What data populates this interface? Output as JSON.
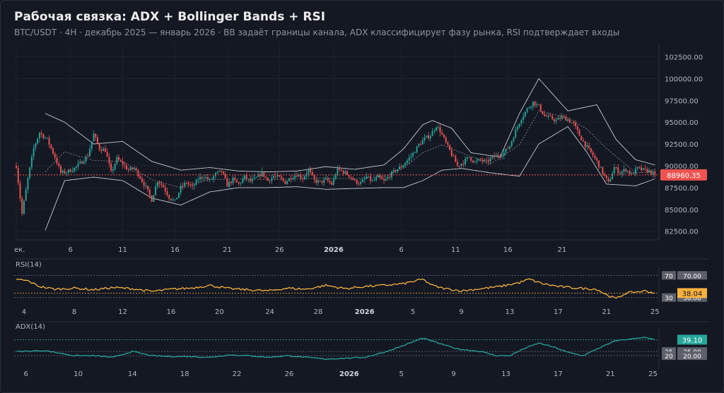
{
  "header": {
    "title": "Рабочая связка: ADX + Bollinger Bands + RSI",
    "subtitle": "BTC/USDT · 4H · декабрь 2025 — январь 2026 · BB задаёт границы канала, ADX классифицирует фазу рынка, RSI подтверждает входы"
  },
  "chart_data": [
    {
      "type": "candlestick",
      "instrument": "BTC/USDT",
      "timeframe": "4H",
      "y_ticks": [
        "102500.00",
        "100000.00",
        "97500.00",
        "95000.00",
        "92500.00",
        "90000.00",
        "87500.00",
        "85000.00",
        "82500.00"
      ],
      "ylim": [
        81500,
        104000
      ],
      "x_ticks": [
        "ек.",
        "6",
        "11",
        "16",
        "21",
        "26",
        "2026",
        "6",
        "11",
        "16",
        "21"
      ],
      "last_price": 88960.35,
      "last_price_label": "88960.35",
      "closes_anchor": [
        [
          0,
          90000
        ],
        [
          3,
          84500
        ],
        [
          6,
          88500
        ],
        [
          9,
          92000
        ],
        [
          12,
          93800
        ],
        [
          16,
          93000
        ],
        [
          20,
          91000
        ],
        [
          23,
          89200
        ],
        [
          26,
          89300
        ],
        [
          30,
          89700
        ],
        [
          34,
          90500
        ],
        [
          37,
          91200
        ],
        [
          40,
          93600
        ],
        [
          43,
          92000
        ],
        [
          46,
          91800
        ],
        [
          49,
          89200
        ],
        [
          52,
          90800
        ],
        [
          55,
          90200
        ],
        [
          58,
          89500
        ],
        [
          61,
          89700
        ],
        [
          64,
          88700
        ],
        [
          67,
          87500
        ],
        [
          70,
          86100
        ],
        [
          73,
          88300
        ],
        [
          76,
          87600
        ],
        [
          79,
          86400
        ],
        [
          82,
          85900
        ],
        [
          85,
          87500
        ],
        [
          88,
          88100
        ],
        [
          91,
          87500
        ],
        [
          94,
          88500
        ],
        [
          97,
          88800
        ],
        [
          100,
          88300
        ],
        [
          103,
          89000
        ],
        [
          106,
          89400
        ],
        [
          109,
          87800
        ],
        [
          112,
          88400
        ],
        [
          115,
          87900
        ],
        [
          118,
          88700
        ],
        [
          121,
          88200
        ],
        [
          124,
          88600
        ],
        [
          127,
          89200
        ],
        [
          130,
          88300
        ],
        [
          133,
          88800
        ],
        [
          136,
          88600
        ],
        [
          139,
          88100
        ],
        [
          142,
          88700
        ],
        [
          145,
          89000
        ],
        [
          148,
          88600
        ],
        [
          151,
          89500
        ],
        [
          154,
          88300
        ],
        [
          157,
          88100
        ],
        [
          160,
          88400
        ],
        [
          163,
          87900
        ],
        [
          166,
          89600
        ],
        [
          169,
          89300
        ],
        [
          172,
          88900
        ],
        [
          175,
          88200
        ],
        [
          178,
          88000
        ],
        [
          181,
          88700
        ],
        [
          184,
          88200
        ],
        [
          187,
          88700
        ],
        [
          190,
          88200
        ],
        [
          193,
          88900
        ],
        [
          196,
          89500
        ],
        [
          199,
          89900
        ],
        [
          202,
          90600
        ],
        [
          205,
          91400
        ],
        [
          208,
          92400
        ],
        [
          211,
          93100
        ],
        [
          214,
          93500
        ],
        [
          217,
          94600
        ],
        [
          219,
          94000
        ],
        [
          222,
          92600
        ],
        [
          225,
          91300
        ],
        [
          228,
          90000
        ],
        [
          231,
          90400
        ],
        [
          234,
          91000
        ],
        [
          237,
          90400
        ],
        [
          240,
          90700
        ],
        [
          243,
          90400
        ],
        [
          246,
          91000
        ],
        [
          249,
          91200
        ],
        [
          252,
          91500
        ],
        [
          255,
          92300
        ],
        [
          258,
          94000
        ],
        [
          261,
          95500
        ],
        [
          264,
          96500
        ],
        [
          267,
          97300
        ],
        [
          270,
          96800
        ],
        [
          273,
          95700
        ],
        [
          276,
          95500
        ],
        [
          279,
          95200
        ],
        [
          282,
          95600
        ],
        [
          285,
          95300
        ],
        [
          288,
          94800
        ],
        [
          291,
          93500
        ],
        [
          294,
          92400
        ],
        [
          297,
          91500
        ],
        [
          300,
          90500
        ],
        [
          303,
          89200
        ],
        [
          306,
          88000
        ],
        [
          309,
          89800
        ],
        [
          312,
          89200
        ],
        [
          315,
          89600
        ],
        [
          318,
          89000
        ],
        [
          321,
          89700
        ],
        [
          324,
          89500
        ],
        [
          327,
          89400
        ],
        [
          330,
          88960
        ]
      ],
      "bollinger": {
        "upper": [
          [
            15,
            96000
          ],
          [
            25,
            95000
          ],
          [
            40,
            92500
          ],
          [
            55,
            92800
          ],
          [
            70,
            90500
          ],
          [
            85,
            89500
          ],
          [
            100,
            89800
          ],
          [
            115,
            89400
          ],
          [
            130,
            89300
          ],
          [
            145,
            89400
          ],
          [
            160,
            89900
          ],
          [
            175,
            89600
          ],
          [
            190,
            90100
          ],
          [
            200,
            91900
          ],
          [
            210,
            94700
          ],
          [
            215,
            95200
          ],
          [
            225,
            94300
          ],
          [
            235,
            91500
          ],
          [
            250,
            91000
          ],
          [
            260,
            96000
          ],
          [
            270,
            100000
          ],
          [
            285,
            96300
          ],
          [
            300,
            97000
          ],
          [
            310,
            93000
          ],
          [
            320,
            90700
          ],
          [
            330,
            90100
          ]
        ],
        "lower": [
          [
            15,
            82600
          ],
          [
            25,
            88300
          ],
          [
            40,
            88700
          ],
          [
            55,
            88300
          ],
          [
            70,
            86300
          ],
          [
            85,
            85500
          ],
          [
            100,
            87000
          ],
          [
            115,
            87500
          ],
          [
            130,
            87500
          ],
          [
            145,
            87600
          ],
          [
            160,
            87300
          ],
          [
            175,
            87400
          ],
          [
            190,
            87500
          ],
          [
            200,
            87500
          ],
          [
            210,
            88300
          ],
          [
            220,
            89500
          ],
          [
            230,
            89700
          ],
          [
            245,
            89200
          ],
          [
            260,
            88800
          ],
          [
            270,
            92500
          ],
          [
            285,
            94500
          ],
          [
            295,
            91500
          ],
          [
            305,
            87900
          ],
          [
            320,
            87700
          ],
          [
            330,
            88500
          ]
        ],
        "middle": [
          [
            15,
            89300
          ],
          [
            25,
            91600
          ],
          [
            40,
            90600
          ],
          [
            55,
            90500
          ],
          [
            70,
            88400
          ],
          [
            85,
            87500
          ],
          [
            100,
            88400
          ],
          [
            115,
            88500
          ],
          [
            130,
            88400
          ],
          [
            145,
            88500
          ],
          [
            160,
            88600
          ],
          [
            175,
            88500
          ],
          [
            190,
            88800
          ],
          [
            200,
            89700
          ],
          [
            210,
            91500
          ],
          [
            220,
            92400
          ],
          [
            230,
            91500
          ],
          [
            245,
            90200
          ],
          [
            260,
            92400
          ],
          [
            270,
            96300
          ],
          [
            285,
            95500
          ],
          [
            295,
            94200
          ],
          [
            305,
            92000
          ],
          [
            320,
            89200
          ],
          [
            330,
            89300
          ]
        ]
      }
    },
    {
      "type": "line",
      "name": "RSI(14)",
      "x_ticks": [
        "4",
        "8",
        "12",
        "16",
        "20",
        "24",
        "28",
        "2026",
        "5",
        "9",
        "13",
        "17",
        "21",
        "25"
      ],
      "ylim": [
        22,
        78
      ],
      "levels": [
        {
          "value": 70,
          "tag": "70",
          "label": "70.00"
        },
        {
          "value": 30,
          "tag": "30",
          "label": "30.00"
        }
      ],
      "last_value": 38.04,
      "last_label": "38.04",
      "series": [
        [
          0,
          63
        ],
        [
          6,
          60
        ],
        [
          12,
          50
        ],
        [
          20,
          45
        ],
        [
          30,
          47
        ],
        [
          40,
          44
        ],
        [
          50,
          48
        ],
        [
          60,
          46
        ],
        [
          70,
          41
        ],
        [
          80,
          45
        ],
        [
          90,
          47
        ],
        [
          100,
          52
        ],
        [
          110,
          46
        ],
        [
          120,
          44
        ],
        [
          130,
          42
        ],
        [
          140,
          47
        ],
        [
          150,
          45
        ],
        [
          160,
          52
        ],
        [
          170,
          46
        ],
        [
          180,
          50
        ],
        [
          190,
          52
        ],
        [
          200,
          55
        ],
        [
          210,
          63
        ],
        [
          215,
          52
        ],
        [
          220,
          47
        ],
        [
          230,
          42
        ],
        [
          240,
          46
        ],
        [
          250,
          50
        ],
        [
          260,
          57
        ],
        [
          265,
          63
        ],
        [
          272,
          55
        ],
        [
          280,
          50
        ],
        [
          290,
          47
        ],
        [
          300,
          45
        ],
        [
          305,
          35
        ],
        [
          310,
          28
        ],
        [
          315,
          38
        ],
        [
          320,
          40
        ],
        [
          325,
          42
        ],
        [
          330,
          38
        ]
      ]
    },
    {
      "type": "line",
      "name": "ADX(14)",
      "x_ticks": [
        "6",
        "10",
        "14",
        "18",
        "22",
        "26",
        "2026",
        "5",
        "9",
        "13",
        "17",
        "21",
        "25"
      ],
      "ylim": [
        10,
        47
      ],
      "levels": [
        {
          "value": 25,
          "tag": "25",
          "label": "25.00"
        },
        {
          "value": 20,
          "tag": "20",
          "label": "20.00"
        }
      ],
      "last_value": 39.1,
      "last_label": "39.10",
      "series": [
        [
          0,
          25
        ],
        [
          15,
          26
        ],
        [
          30,
          20
        ],
        [
          40,
          20
        ],
        [
          50,
          18
        ],
        [
          60,
          25
        ],
        [
          70,
          20
        ],
        [
          80,
          19
        ],
        [
          90,
          19
        ],
        [
          100,
          18
        ],
        [
          110,
          21
        ],
        [
          120,
          20
        ],
        [
          130,
          18
        ],
        [
          140,
          20
        ],
        [
          150,
          18
        ],
        [
          160,
          16
        ],
        [
          170,
          17
        ],
        [
          180,
          18
        ],
        [
          190,
          24
        ],
        [
          200,
          32
        ],
        [
          210,
          41
        ],
        [
          218,
          35
        ],
        [
          228,
          28
        ],
        [
          240,
          25
        ],
        [
          248,
          20
        ],
        [
          255,
          20
        ],
        [
          262,
          28
        ],
        [
          270,
          35
        ],
        [
          278,
          30
        ],
        [
          285,
          24
        ],
        [
          293,
          20
        ],
        [
          300,
          28
        ],
        [
          310,
          38
        ],
        [
          318,
          40
        ],
        [
          324,
          42
        ],
        [
          330,
          39
        ]
      ]
    }
  ]
}
